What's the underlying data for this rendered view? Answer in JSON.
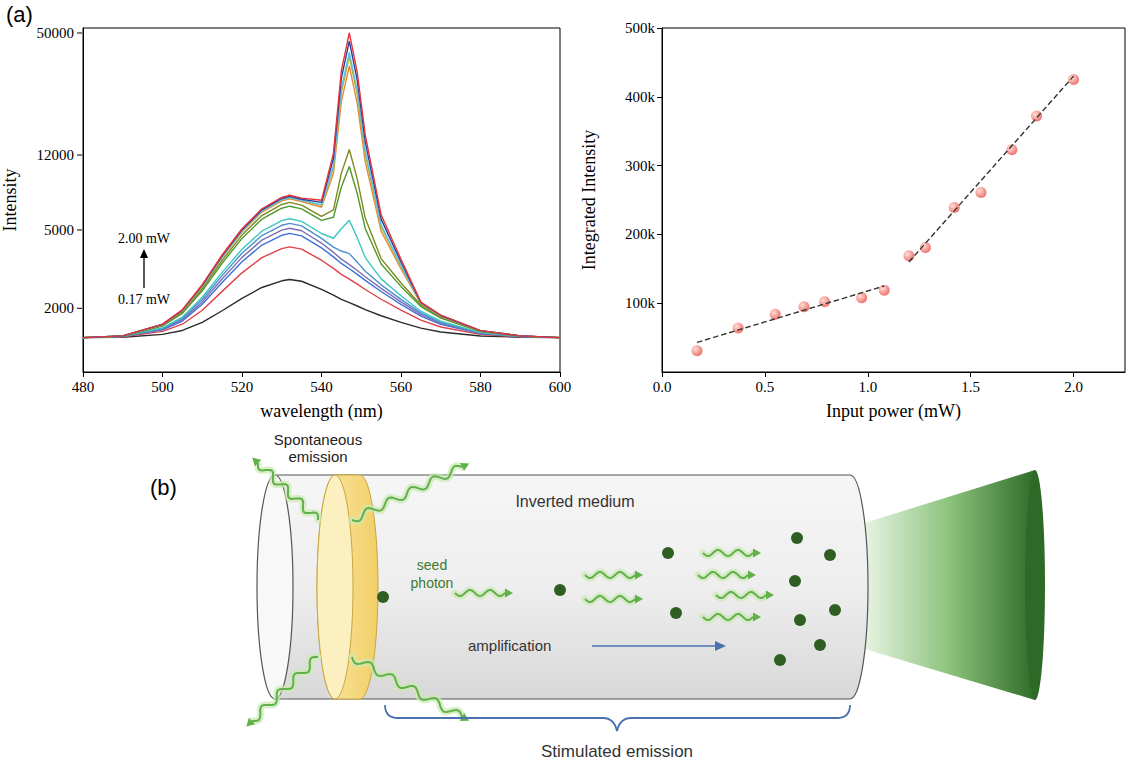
{
  "panel_label": "(a)",
  "chart_data": [
    {
      "type": "line",
      "x_label": "wavelength (nm)",
      "y_label": "Intensity",
      "annotations": [
        "2.00 mW",
        "0.17 mW"
      ],
      "log": "y",
      "grid": false,
      "marker": "none",
      "line_style": "solid",
      "xlim": [
        480,
        600
      ],
      "xticks": [
        480,
        500,
        520,
        540,
        560,
        580,
        600
      ],
      "ylim": [
        950,
        53000
      ],
      "yticks": [
        2000,
        5000,
        12000,
        50000
      ],
      "x": [
        480,
        490,
        500,
        505,
        510,
        515,
        520,
        525,
        530,
        532,
        535,
        540,
        543,
        545,
        547,
        549,
        551,
        555,
        560,
        565,
        570,
        580,
        590,
        600
      ],
      "series": [
        {
          "color": "#2b2b2b",
          "values": [
            1420,
            1427,
            1475,
            1544,
            1696,
            1944,
            2248,
            2552,
            2759,
            2800,
            2745,
            2496,
            2331,
            2220,
            2138,
            2055,
            1972,
            1834,
            1696,
            1586,
            1517,
            1448,
            1427,
            1420
          ]
        },
        {
          "color": "#e0404a",
          "values": [
            1420,
            1433,
            1527,
            1661,
            1956,
            2438,
            3028,
            3618,
            4020,
            4100,
            3993,
            3510,
            3189,
            2974,
            2814,
            2653,
            2492,
            2224,
            1956,
            1742,
            1608,
            1474,
            1433,
            1420
          ]
        },
        {
          "color": "#3f6fd6",
          "values": [
            1420,
            1437,
            1555,
            1724,
            2096,
            2704,
            3448,
            4192,
            4699,
            4800,
            4665,
            4056,
            3651,
            3380,
            3178,
            2975,
            2772,
            2434,
            2096,
            1826,
            1657,
            1488,
            1437,
            1420
          ]
        },
        {
          "color": "#7b6fb0",
          "values": [
            1420,
            1438,
            1567,
            1751,
            2156,
            2818,
            3628,
            4438,
            4990,
            5100,
            4953,
            4290,
            3849,
            3554,
            3334,
            3113,
            2892,
            2524,
            2156,
            1862,
            1678,
            1494,
            1438,
            1420
          ]
        },
        {
          "color": "#4c8fcf",
          "values": [
            1420,
            1440,
            1579,
            1778,
            2216,
            2932,
            3808,
            4684,
            5281,
            5400,
            5241,
            4530,
            4092,
            3908,
            3790,
            3431,
            3087,
            2632,
            2222,
            1898,
            1699,
            1500,
            1440,
            1420
          ]
        },
        {
          "color": "#3cc7c0",
          "values": [
            1420,
            1441,
            1591,
            1805,
            2276,
            3046,
            3988,
            4930,
            5572,
            5700,
            5529,
            4797,
            4538,
            5072,
            5596,
            4559,
            3620,
            2821,
            2315,
            1934,
            1720,
            1506,
            1441,
            1420
          ]
        },
        {
          "color": "#4e9a2a",
          "values": [
            1420,
            1446,
            1627,
            1886,
            2456,
            3388,
            4528,
            5668,
            6445,
            6600,
            6393,
            5588,
            5798,
            8258,
            10504,
            7637,
            5090,
            3357,
            2584,
            2042,
            1783,
            1524,
            1446,
            1420
          ]
        },
        {
          "color": "#7d8a1e",
          "values": [
            1420,
            1447,
            1639,
            1913,
            2516,
            3502,
            4708,
            5914,
            6736,
            6900,
            6681,
            5865,
            6317,
            9716,
            12800,
            9059,
            5745,
            3576,
            2687,
            2078,
            1804,
            1530,
            1447,
            1420
          ]
        },
        {
          "color": "#e88a36",
          "values": [
            1420,
            1449,
            1651,
            1940,
            2576,
            3616,
            4888,
            6160,
            7027,
            7200,
            6969,
            6519,
            9671,
            22514,
            33996,
            21821,
            11125,
            4928,
            3167,
            2114,
            1825,
            1536,
            1449,
            1420
          ]
        },
        {
          "color": "#a8b82c",
          "values": [
            1420,
            1449,
            1655,
            1949,
            2596,
            3654,
            4948,
            6242,
            7124,
            7300,
            7065,
            6676,
            10329,
            24942,
            37998,
            24237,
            12152,
            5195,
            3266,
            2126,
            1832,
            1538,
            1449,
            1420
          ]
        },
        {
          "color": "#5ec3e8",
          "values": [
            1420,
            1449,
            1655,
            1949,
            2596,
            3654,
            4948,
            6242,
            7124,
            7300,
            7065,
            6716,
            10629,
            26142,
            39998,
            25437,
            12652,
            5315,
            3306,
            2126,
            1832,
            1538,
            1449,
            1420
          ]
        },
        {
          "color": "#2d3f9c",
          "values": [
            1420,
            1450,
            1659,
            1958,
            2616,
            3692,
            5008,
            6324,
            7221,
            7400,
            7161,
            6903,
            11513,
            29470,
            45500,
            28753,
            14055,
            5672,
            3435,
            2138,
            1839,
            1540,
            1450,
            1420
          ]
        },
        {
          "color": "#e8333a",
          "values": [
            1420,
            1450,
            1663,
            1967,
            2636,
            3730,
            5068,
            6406,
            7318,
            7500,
            7257,
            7070,
            12246,
            32198,
            50000,
            31469,
            15207,
            5969,
            3544,
            2150,
            1846,
            1541,
            1450,
            1420
          ]
        }
      ]
    },
    {
      "type": "scatter",
      "x_label": "Input power (mW)",
      "y_label": "Integrated Intensity",
      "grid": false,
      "xlim": [
        0,
        2.25
      ],
      "xticks": [
        {
          "value": 0,
          "label": "0.0"
        },
        {
          "value": 0.5,
          "label": "0.5"
        },
        {
          "value": 1,
          "label": "1.0"
        },
        {
          "value": 1.5,
          "label": "1.5"
        },
        {
          "value": 2,
          "label": "2.0"
        }
      ],
      "ylim": [
        0,
        500000
      ],
      "yticks": [
        {
          "value": 100000,
          "label": "100k"
        },
        {
          "value": 200000,
          "label": "200k"
        },
        {
          "value": 300000,
          "label": "300k"
        },
        {
          "value": 400000,
          "label": "400k"
        },
        {
          "value": 500000,
          "label": "500k"
        }
      ],
      "series": [
        {
          "type": "scatter",
          "color": "#e8413a",
          "marker": "circle",
          "x": [
            0.17,
            0.37,
            0.55,
            0.69,
            0.79,
            0.97,
            1.08,
            1.2,
            1.28,
            1.42,
            1.55,
            1.7,
            1.82,
            2.0
          ],
          "values": [
            31000,
            64000,
            84000,
            95000,
            102000,
            108000,
            119000,
            169000,
            181000,
            239000,
            261000,
            323000,
            372000,
            425000
          ]
        },
        {
          "type": "line",
          "color": "#333333",
          "line_style": "dashed",
          "x": [
            0.17,
            1.08
          ],
          "values": [
            43000,
            125000
          ]
        },
        {
          "type": "line",
          "color": "#333333",
          "line_style": "dashed",
          "x": [
            1.2,
            2.0
          ],
          "values": [
            160000,
            430000
          ]
        }
      ]
    }
  ],
  "diagram": {
    "panel_label": "(b)",
    "labels": {
      "spontaneous": "Spontaneous emission",
      "medium": "Inverted medium",
      "seed": "seed photon",
      "amplification": "amplification",
      "stimulated": "Stimulated emission"
    }
  }
}
